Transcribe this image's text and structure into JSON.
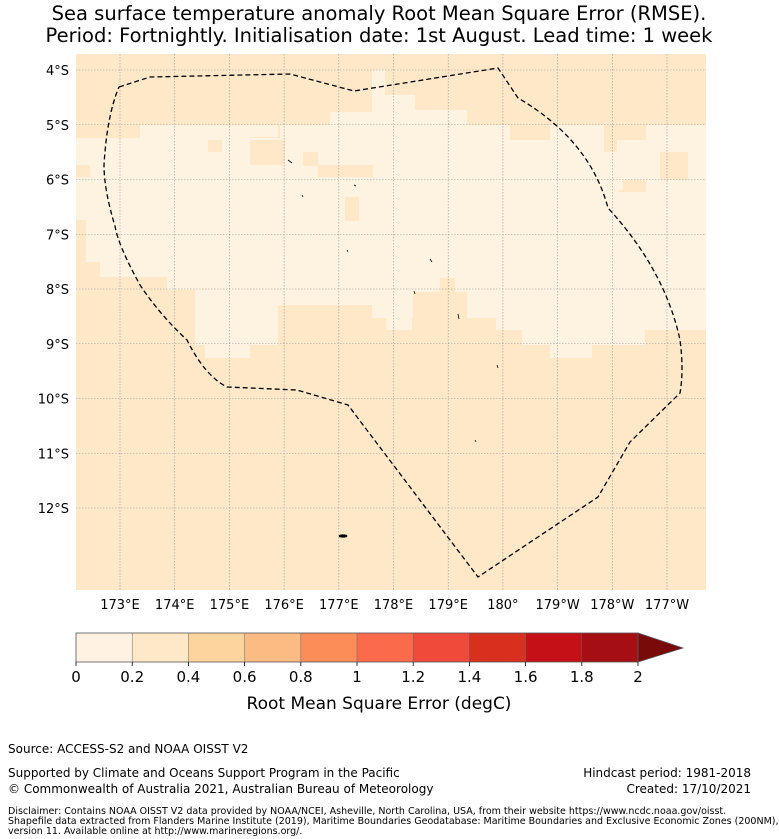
{
  "title_line1": "Sea surface temperature anomaly Root Mean Square Error (RMSE).",
  "title_line2": "Period: Fortnightly. Initialisation date: 1st August. Lead time: 1 week",
  "map": {
    "lat_labels": [
      "4°S",
      "5°S",
      "6°S",
      "7°S",
      "8°S",
      "9°S",
      "10°S",
      "11°S",
      "12°S"
    ],
    "lon_labels": [
      "173°E",
      "174°E",
      "175°E",
      "176°E",
      "177°E",
      "178°E",
      "179°E",
      "180°",
      "179°W",
      "178°W",
      "177°W"
    ],
    "field_colors": [
      "#fef2e0",
      "#fee8c8"
    ]
  },
  "colorbar": {
    "label": "Root Mean Square Error (degC)",
    "tick_labels": [
      "0",
      "0.2",
      "0.4",
      "0.6",
      "0.8",
      "1",
      "1.2",
      "1.4",
      "1.6",
      "1.8",
      "2"
    ],
    "colors": [
      "#fff2e2",
      "#fee8c8",
      "#fdd49e",
      "#fdbb84",
      "#fc8d59",
      "#fb6a4a",
      "#ef4a3a",
      "#d7301f",
      "#c51018",
      "#a50e13"
    ],
    "extend_color": "#7a0a0a"
  },
  "footer": {
    "source": "Source: ACCESS-S2 and NOAA OISST V2",
    "supported": "Supported by Climate and Oceans Support Program in the Pacific",
    "copyright": "© Commonwealth of Australia 2021, Australian Bureau of Meteorology",
    "hindcast": "Hindcast period: 1981-2018",
    "created": "Created: 17/10/2021",
    "disclaimer1": "Disclaimer: Contains NOAA OISST V2 data provided by NOAA/NCEI, Asheville, North Carolina, USA, from their website https://www.ncdc.noaa.gov/oisst.",
    "disclaimer2": "Shapefile data extracted from Flanders Marine Institute (2019), Maritime Boundaries Geodatabase: Maritime Boundaries and Exclusive Economic Zones (200NM),",
    "disclaimer3": "version 11. Available online at http://www.marineregions.org/."
  }
}
